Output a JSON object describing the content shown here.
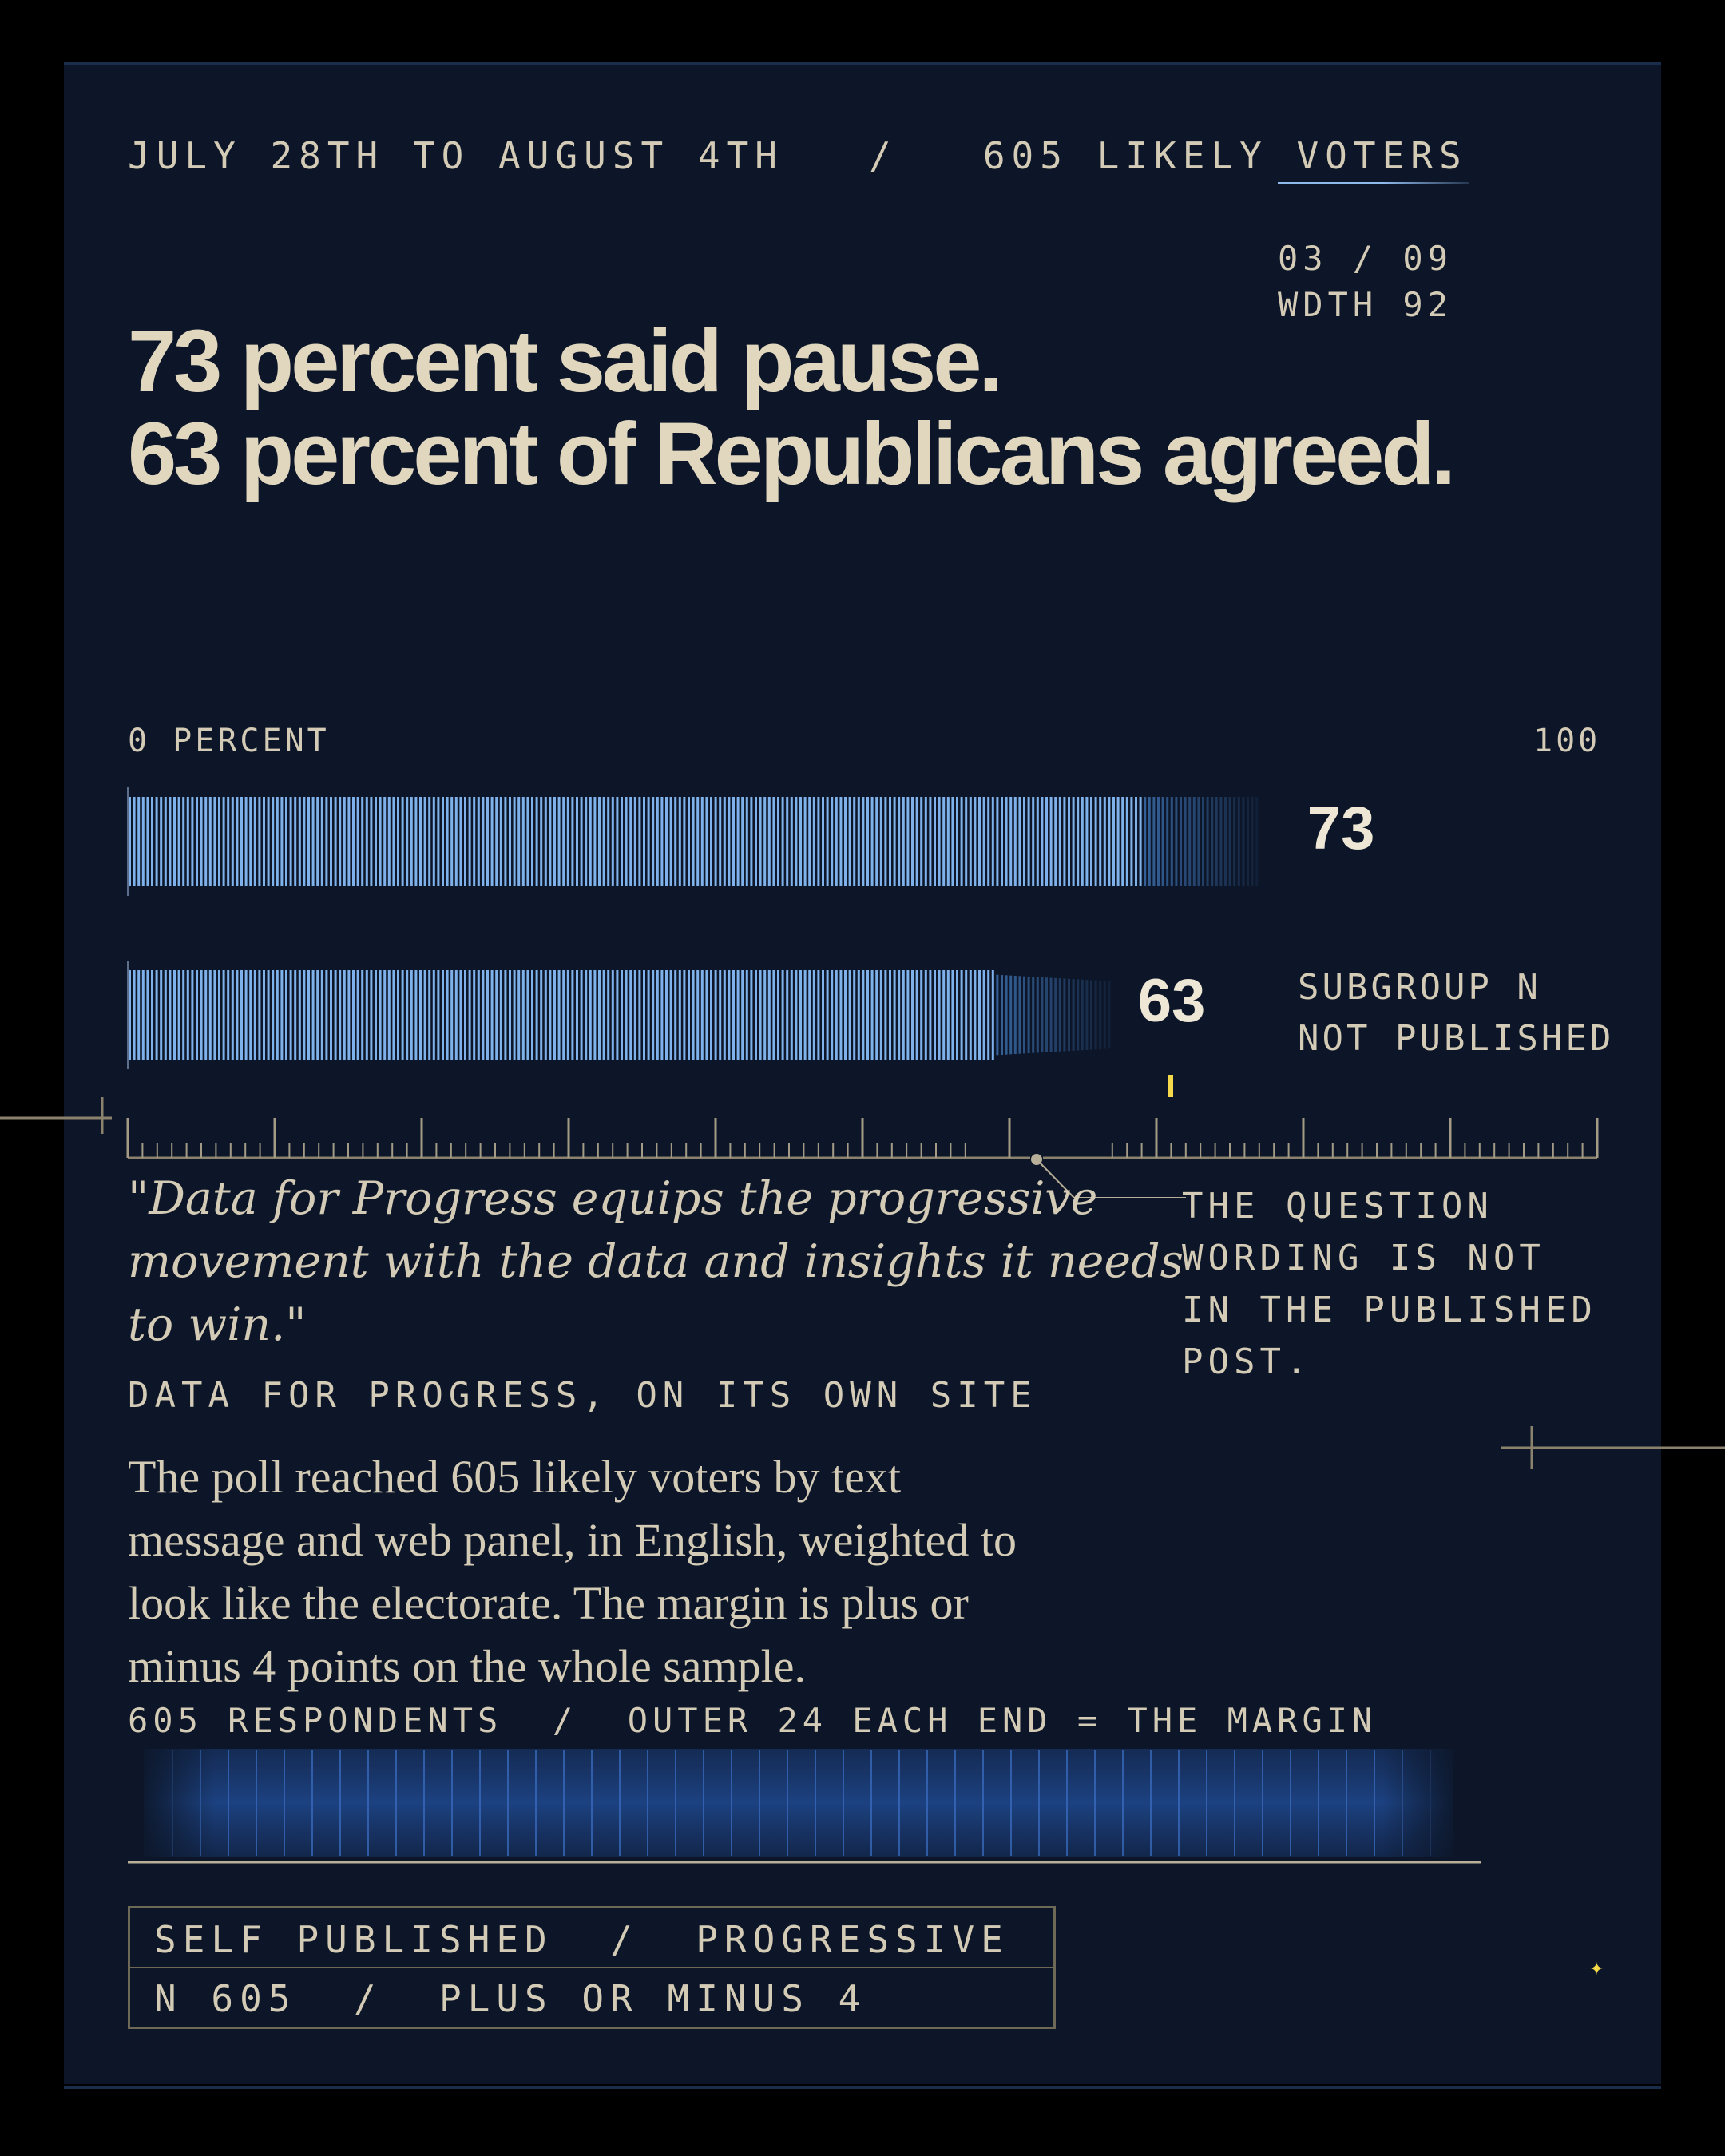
{
  "header": {
    "kicker": "JULY 28TH TO AUGUST 4TH   /   605 LIKELY VOTERS",
    "pager": "03 / 09",
    "width_label": "WDTH 92"
  },
  "headline": {
    "line1": "73 percent said pause.",
    "line2": "63 percent of Republicans agreed."
  },
  "chart_data": {
    "type": "bar",
    "title": "",
    "xlabel": "",
    "ylabel": "",
    "axis_min_label": "0 PERCENT",
    "axis_max_label": "100",
    "xlim": [
      0,
      100
    ],
    "categories": [
      "",
      ""
    ],
    "values": [
      73,
      63
    ],
    "value_labels": [
      "73",
      "63"
    ],
    "margin_of_error": 4,
    "grid": false,
    "legend": "none",
    "annotation": "SUBGROUP N\nNOT PUBLISHED",
    "colors": {
      "bar": "#7fb2ea",
      "bar_faded": "#3d6fae"
    }
  },
  "quote": {
    "text": "\"Data for Progress equips the progressive\nmovement with the data and insights it needs\nto win.\"",
    "source": "DATA FOR PROGRESS, ON ITS OWN SITE"
  },
  "side_note": "THE QUESTION\nWORDING IS NOT\nIN THE PUBLISHED\nPOST.",
  "body": "The poll reached 605 likely voters by text\nmessage and web panel, in English, weighted to\nlook like the electorate. The margin is plus or\nminus 4 points on the whole sample.",
  "respondents": {
    "label": "605 RESPONDENTS  /  OUTER 24 EACH END = THE MARGIN",
    "count": 605,
    "outer_each_end": 24
  },
  "footer": {
    "line1": "SELF PUBLISHED  /  PROGRESSIVE",
    "line2": "N 605  /  PLUS OR MINUS 4"
  },
  "colors": {
    "background": "#0c1628",
    "text": "#d4cbb6",
    "headline": "#e1d7bf",
    "accent_blue": "#7fb2ea",
    "accent_yellow": "#f5d94b",
    "rule": "#8a826c"
  }
}
